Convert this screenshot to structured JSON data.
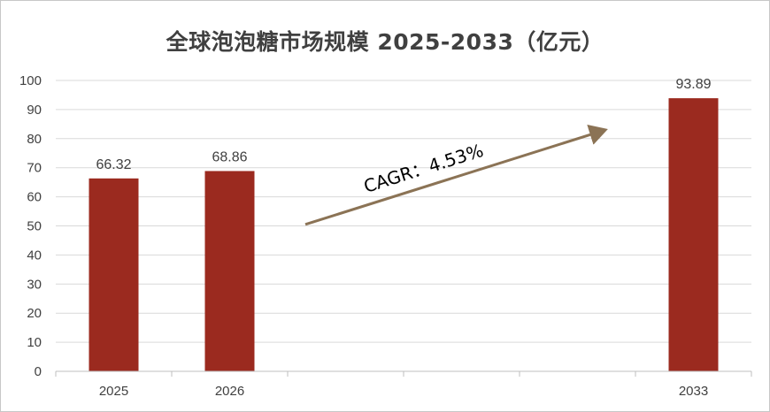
{
  "chart_data": {
    "type": "bar",
    "title": "全球泡泡糖市场规模 2025-2033（亿元）",
    "xlabel": "",
    "ylabel": "",
    "ylim": [
      0,
      100
    ],
    "yticks": [
      0,
      10,
      20,
      30,
      40,
      50,
      60,
      70,
      80,
      90,
      100
    ],
    "categories": [
      "2025",
      "2026",
      "",
      "",
      "",
      "2033"
    ],
    "values": [
      66.32,
      68.86,
      null,
      null,
      null,
      93.89
    ],
    "data_labels": [
      "66.32",
      "68.86",
      "",
      "",
      "",
      "93.89"
    ],
    "bar_color": "#9b2a1f",
    "grid": true,
    "annotation": {
      "text": "CAGR：4.53%",
      "arrow_color": "#8b7355"
    }
  }
}
